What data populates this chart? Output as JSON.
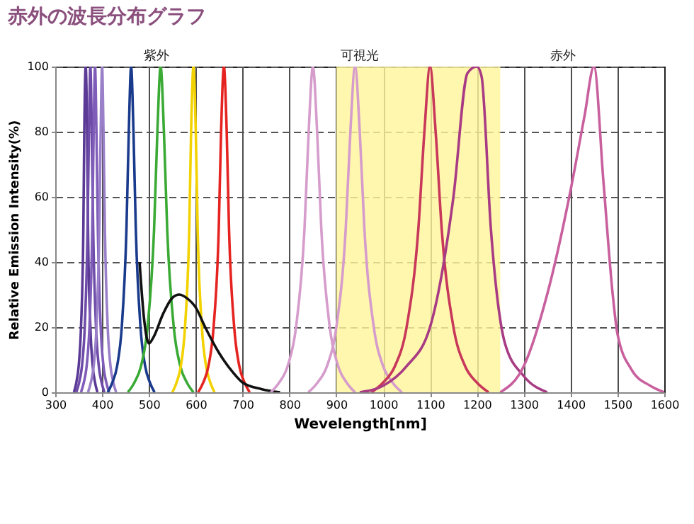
{
  "chart_data": {
    "type": "line",
    "title": "赤外の波長分布グラフ",
    "xlabel": "Wevelength[nm]",
    "ylabel": "Relative Emission Intensity(%)",
    "xlim": [
      300,
      1600
    ],
    "xticks": [
      300,
      400,
      500,
      600,
      700,
      800,
      900,
      1000,
      1100,
      1200,
      1300,
      1400,
      1500,
      1600
    ],
    "ylim": [
      0,
      100
    ],
    "yticks": [
      0,
      20,
      40,
      60,
      80,
      100
    ],
    "grid": true,
    "legend": false,
    "marker": "none",
    "line_style": "solid",
    "annotations": [
      "紫外",
      "可視光",
      "赤外"
    ],
    "bands": [
      {
        "axis": "x",
        "from": 900,
        "to": 1250,
        "color": "#fff59a"
      }
    ],
    "series": [
      {
        "color": "#5b3a96",
        "x": [
          340,
          345,
          350,
          355,
          360,
          362,
          365,
          368,
          370,
          375,
          380,
          385,
          390
        ],
        "values": [
          0,
          3,
          8,
          20,
          50,
          80,
          100,
          80,
          50,
          20,
          8,
          3,
          0
        ]
      },
      {
        "color": "#6e4ba8",
        "x": [
          345,
          351,
          357,
          363,
          369,
          372,
          375,
          378,
          381,
          387,
          393,
          399,
          405
        ],
        "values": [
          0,
          3,
          8,
          20,
          50,
          80,
          100,
          80,
          50,
          20,
          8,
          3,
          0
        ]
      },
      {
        "color": "#7f5db8",
        "x": [
          355,
          361,
          367,
          373,
          379,
          382,
          385,
          388,
          391,
          397,
          403,
          409,
          415
        ],
        "values": [
          0,
          3,
          8,
          20,
          50,
          80,
          100,
          80,
          50,
          20,
          8,
          3,
          0
        ]
      },
      {
        "color": "#9a80c8",
        "x": [
          370,
          376,
          382,
          388,
          394,
          397,
          400,
          403,
          406,
          412,
          418,
          424,
          430
        ],
        "values": [
          0,
          3,
          8,
          20,
          50,
          80,
          100,
          80,
          50,
          20,
          8,
          3,
          0
        ]
      },
      {
        "color": "#1a3a8c",
        "x": [
          412,
          422,
          432,
          442,
          452,
          457,
          462,
          467,
          472,
          482,
          492,
          502,
          512
        ],
        "values": [
          0,
          3,
          8,
          20,
          50,
          80,
          100,
          80,
          50,
          20,
          8,
          3,
          0
        ]
      },
      {
        "color": "#3aaa35",
        "x": [
          455,
          469,
          483,
          497,
          511,
          518,
          525,
          532,
          539,
          553,
          567,
          581,
          595
        ],
        "values": [
          0,
          3,
          8,
          20,
          50,
          80,
          100,
          80,
          50,
          20,
          8,
          3,
          0
        ]
      },
      {
        "color": "#f2d200",
        "x": [
          550,
          559,
          568,
          577,
          586,
          590,
          595,
          600,
          604,
          613,
          622,
          631,
          640
        ],
        "values": [
          0,
          3,
          8,
          20,
          50,
          80,
          100,
          80,
          50,
          20,
          8,
          3,
          0
        ]
      },
      {
        "color": "#e52421",
        "x": [
          605,
          616,
          627,
          638,
          649,
          654,
          660,
          666,
          671,
          682,
          693,
          704,
          715
        ],
        "values": [
          0,
          3,
          8,
          20,
          50,
          80,
          100,
          80,
          50,
          20,
          8,
          3,
          0
        ]
      },
      {
        "color": "#111111",
        "x": [
          480,
          490,
          500,
          510,
          530,
          550,
          565,
          580,
          600,
          620,
          650,
          680,
          700,
          740,
          780
        ],
        "values": [
          40,
          22,
          15,
          17,
          24,
          29,
          30,
          29,
          26,
          20,
          12,
          6,
          3,
          1,
          0
        ]
      },
      {
        "color": "#d59ccc",
        "x": [
          760,
          778,
          796,
          814,
          832,
          841,
          850,
          859,
          868,
          886,
          904,
          922,
          940
        ],
        "values": [
          0,
          3,
          8,
          20,
          50,
          80,
          100,
          80,
          50,
          20,
          8,
          3,
          0
        ]
      },
      {
        "color": "#d59ccc",
        "x": [
          840,
          860,
          880,
          900,
          920,
          930,
          940,
          950,
          960,
          980,
          1000,
          1020,
          1040
        ],
        "values": [
          0,
          3,
          8,
          20,
          50,
          80,
          100,
          80,
          50,
          20,
          8,
          3,
          0
        ]
      },
      {
        "color": "#c8385a",
        "x": [
          975,
          1000,
          1025,
          1050,
          1075,
          1088,
          1100,
          1112,
          1125,
          1150,
          1175,
          1200,
          1225
        ],
        "values": [
          0,
          3,
          8,
          20,
          50,
          80,
          100,
          80,
          50,
          20,
          8,
          3,
          0
        ]
      },
      {
        "color": "#a83c84",
        "x": [
          950,
          1000,
          1050,
          1100,
          1150,
          1180,
          1200,
          1210,
          1230,
          1260,
          1300,
          1350
        ],
        "values": [
          0,
          2,
          8,
          20,
          60,
          98,
          100,
          97,
          50,
          15,
          5,
          0
        ]
      },
      {
        "color": "#c8609e",
        "x": [
          1250,
          1300,
          1350,
          1400,
          1430,
          1450,
          1470,
          1490,
          1500,
          1530,
          1570,
          1600
        ],
        "values": [
          0,
          8,
          30,
          62,
          85,
          100,
          65,
          30,
          18,
          7,
          2,
          0
        ]
      }
    ]
  }
}
